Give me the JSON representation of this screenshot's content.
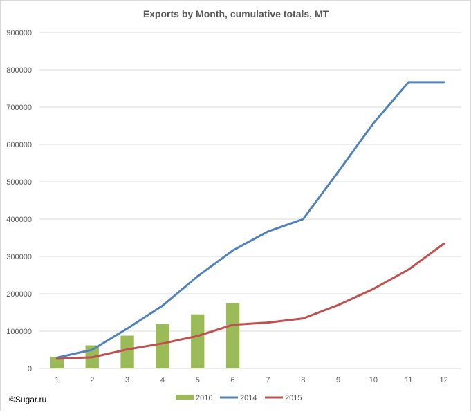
{
  "chart_data": {
    "type": "bar+line",
    "title": "Exports by Month, cumulative totals, MT",
    "xlabel": "",
    "ylabel": "",
    "categories": [
      "1",
      "2",
      "3",
      "4",
      "5",
      "6",
      "7",
      "8",
      "9",
      "10",
      "11",
      "12"
    ],
    "ylim": [
      0,
      900000
    ],
    "yticks": [
      "0",
      "100000",
      "200000",
      "300000",
      "400000",
      "500000",
      "600000",
      "700000",
      "800000",
      "900000"
    ],
    "grid": "horizontal",
    "legend_position": "bottom",
    "series": [
      {
        "name": "2016",
        "kind": "bar",
        "color": "#9bbb59",
        "values": [
          31000,
          62000,
          88000,
          119000,
          145000,
          175000,
          null,
          null,
          null,
          null,
          null,
          null
        ]
      },
      {
        "name": "2014",
        "kind": "line",
        "color": "#4f81bd",
        "values": [
          29000,
          50000,
          107000,
          168000,
          247000,
          316000,
          367000,
          400000,
          527000,
          657000,
          767000,
          767000
        ]
      },
      {
        "name": "2015",
        "kind": "line",
        "color": "#c0504d",
        "values": [
          26000,
          30000,
          51000,
          67000,
          87000,
          117000,
          123000,
          134000,
          170000,
          213000,
          265000,
          334000
        ]
      }
    ]
  },
  "credit": "©Sugar.ru"
}
